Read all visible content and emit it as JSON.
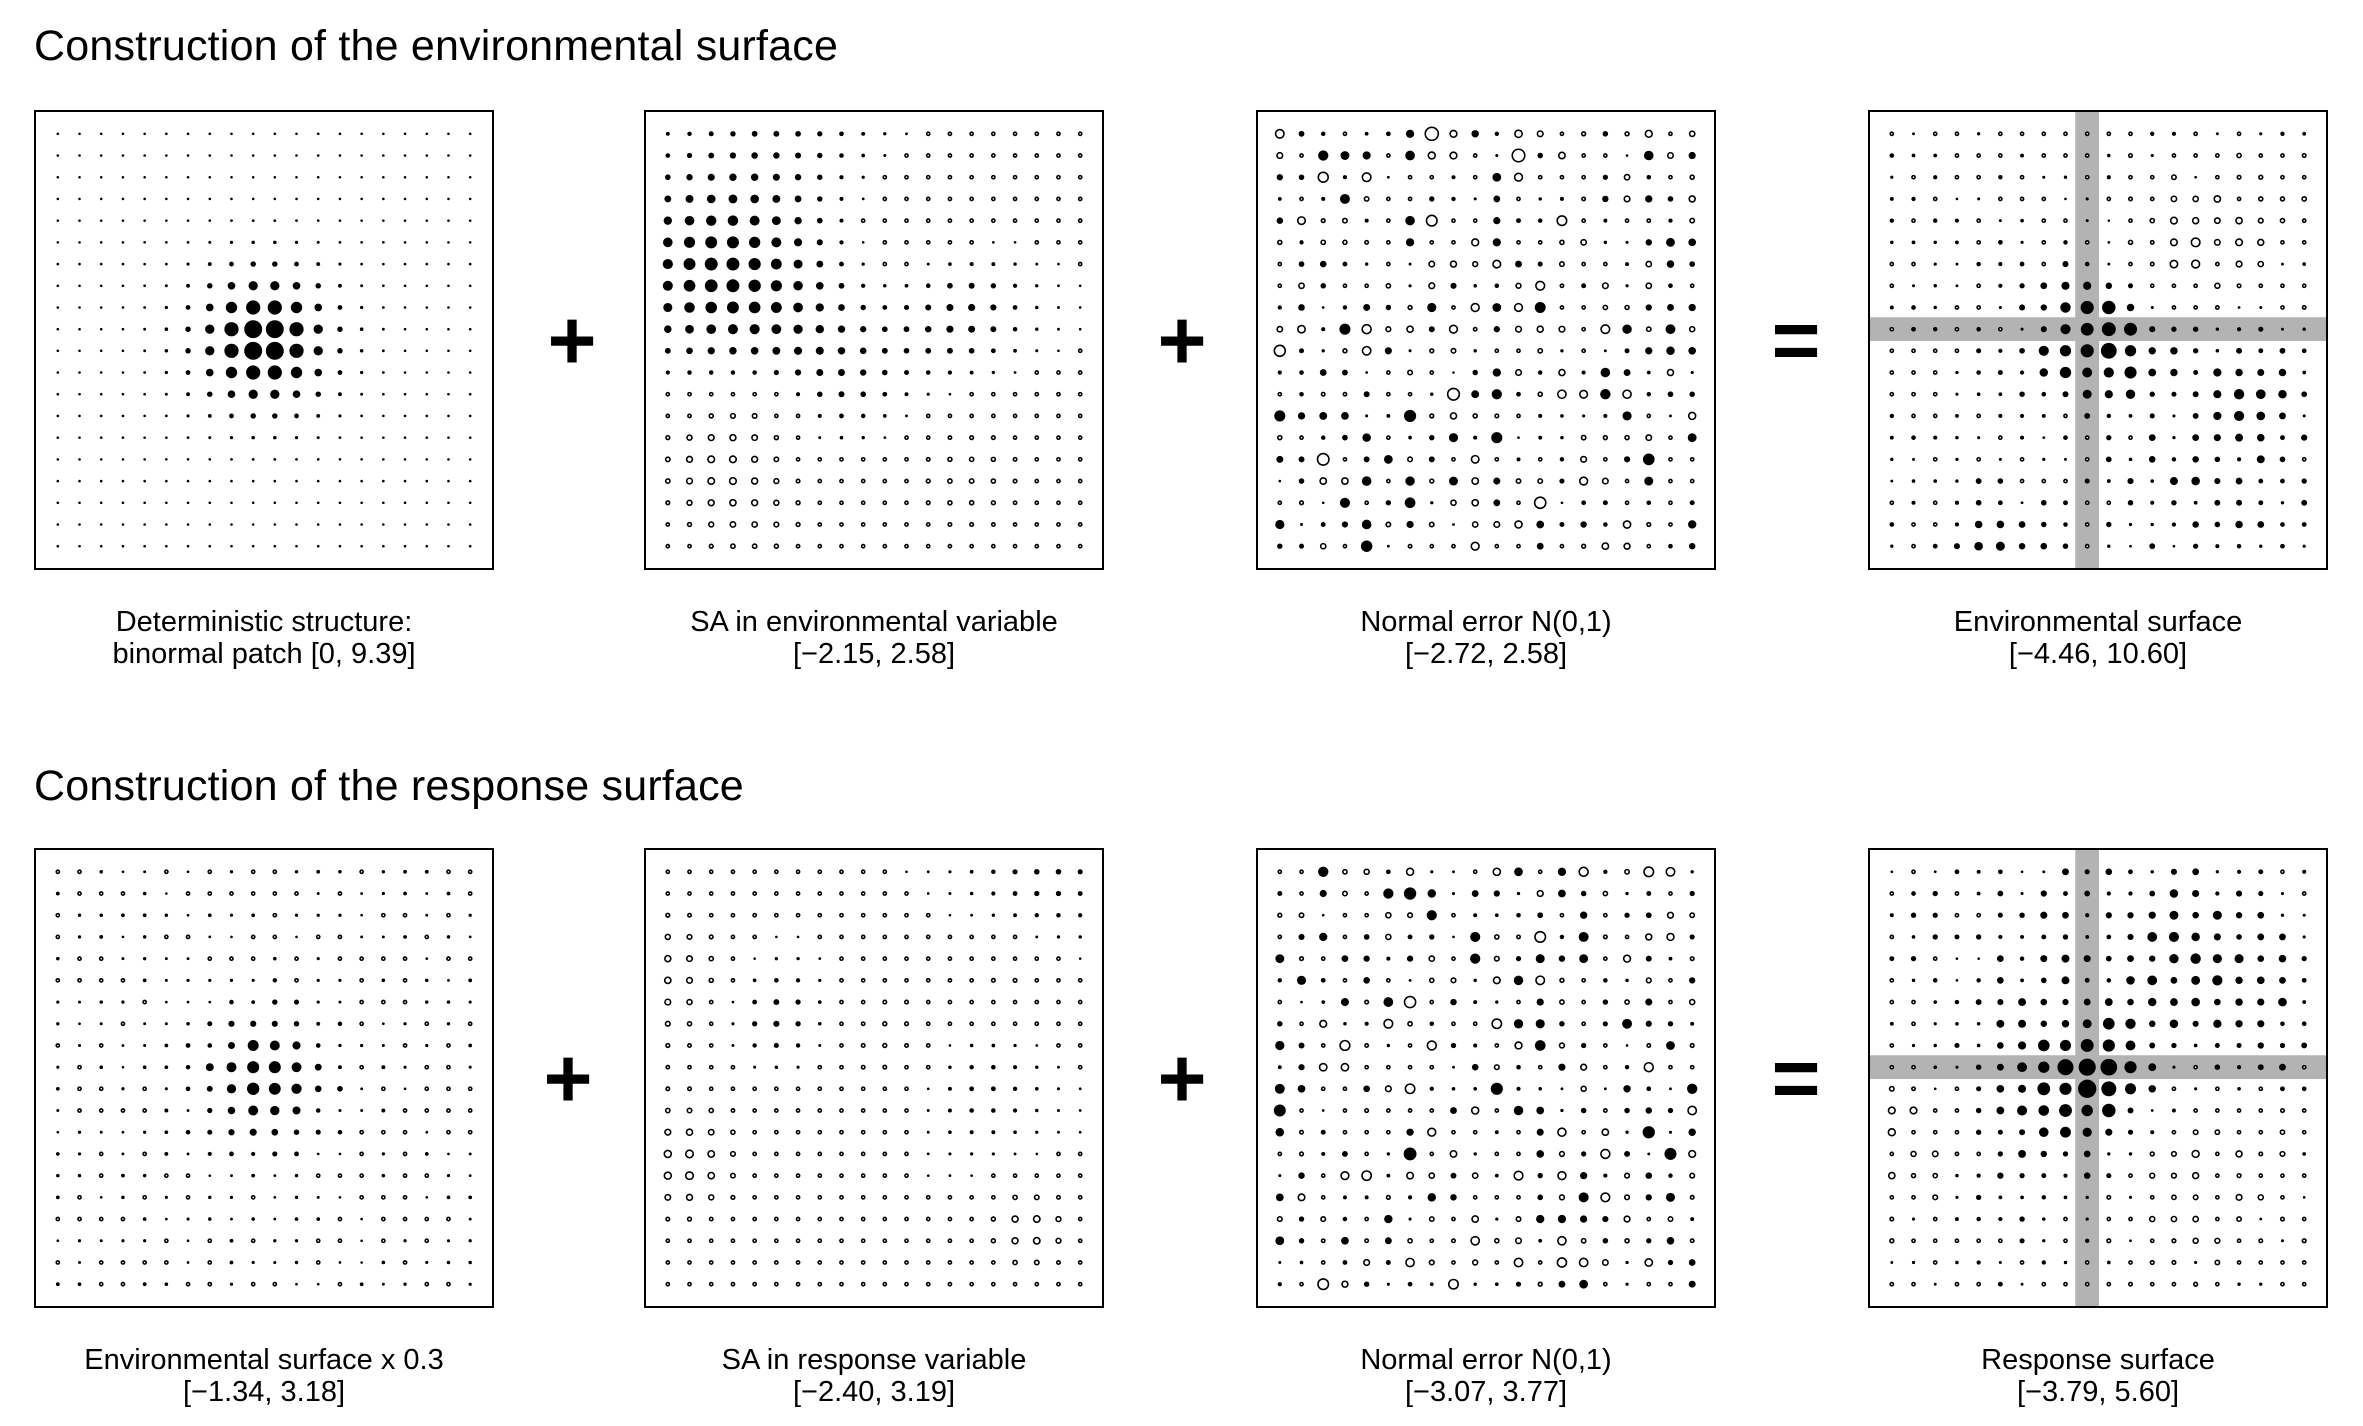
{
  "sections": [
    {
      "title": "Construction of the environmental surface",
      "operators": [
        "+",
        "+",
        "="
      ],
      "panels": [
        {
          "label": "Deterministic structure:",
          "range": "binormal patch [0, 9.39]",
          "pattern": "patch",
          "seed": 11
        },
        {
          "label": "SA in environmental variable",
          "range": "[−2.15, 2.58]",
          "pattern": "sa",
          "seed": 23
        },
        {
          "label": "Normal error N(0,1)",
          "range": "[−2.72, 2.58]",
          "pattern": "noise",
          "seed": 37
        },
        {
          "label": "Environmental surface",
          "range": "[−4.46, 10.60]",
          "pattern": "combined",
          "seed": 41,
          "highlight": {
            "row": 9,
            "col": 9
          }
        }
      ]
    },
    {
      "title": "Construction of the response surface",
      "operators": [
        "+",
        "+",
        "="
      ],
      "panels": [
        {
          "label": "Environmental surface x 0.3",
          "range": "[−1.34, 3.18]",
          "pattern": "patch-scaled",
          "seed": 53
        },
        {
          "label": "SA in response variable",
          "range": "[−2.40, 3.19]",
          "pattern": "sa",
          "seed": 67
        },
        {
          "label": "Normal error N(0,1)",
          "range": "[−3.07, 3.77]",
          "pattern": "noise",
          "seed": 71
        },
        {
          "label": "Response surface",
          "range": "[−3.79, 5.60]",
          "pattern": "combined",
          "seed": 89,
          "highlight": {
            "row": 9,
            "col": 9
          }
        }
      ]
    }
  ],
  "style": {
    "filled_color": "#000000",
    "open_color": "#000000",
    "highlight_color": "#b3b3b3",
    "grid_points": 20
  }
}
